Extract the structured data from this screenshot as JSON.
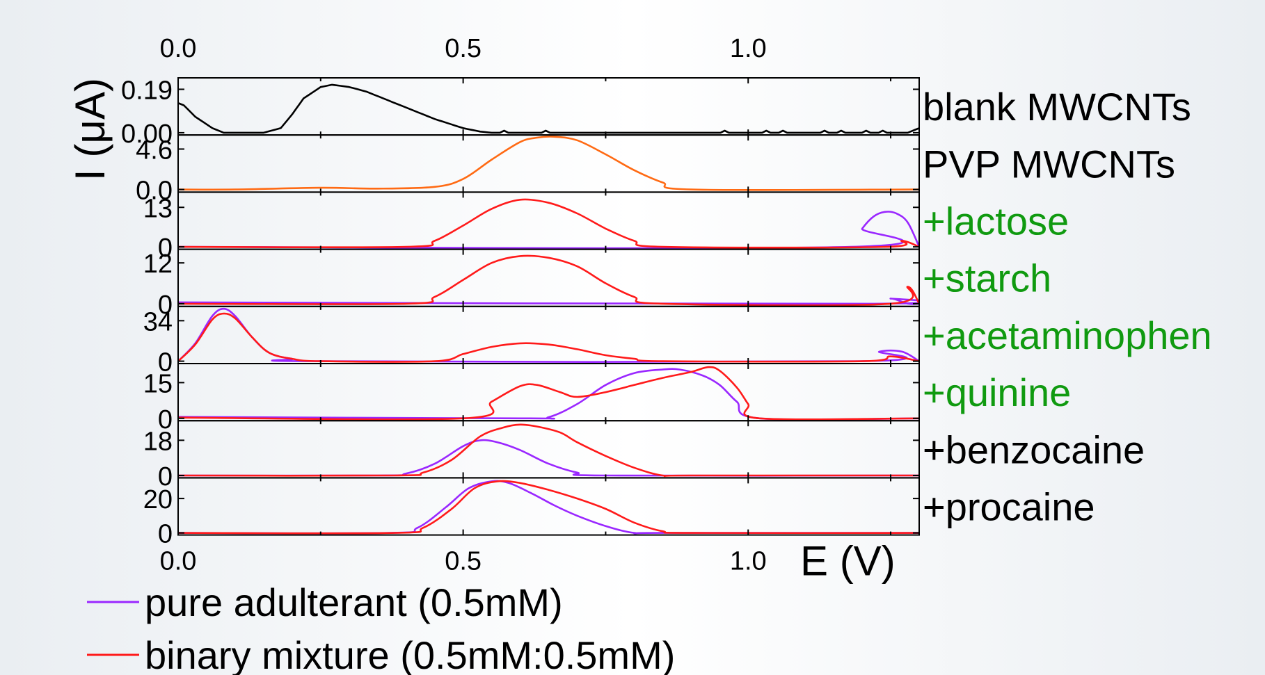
{
  "chart_data": {
    "type": "line",
    "xlabel": "E (V)",
    "ylabel": "I (μA)",
    "xlim": [
      0,
      1.3
    ],
    "x_ticks": [
      0,
      0.5,
      1.0
    ],
    "x_tick_labels_top": [
      "0.0",
      "0.5",
      "1.0"
    ],
    "x_tick_labels_bottom": [
      "0.0",
      "0.5",
      "1.0"
    ],
    "colors": {
      "black": "#000000",
      "orange": "#ff6a13",
      "purple": "#9a27ff",
      "red": "#ff1a1a",
      "green": "#109a10"
    },
    "legend": [
      {
        "label": "pure adulterant (0.5mM)",
        "color": "#9a27ff"
      },
      {
        "label": "binary mixture (0.5mM:0.5mM)",
        "color": "#ff1a1a"
      }
    ],
    "panels": [
      {
        "label": "blank MWCNTs",
        "label_color": "#000000",
        "ylim": [
          -0.01,
          0.24
        ],
        "yticks": [
          0.0,
          0.19
        ],
        "ytick_labels": [
          "0.00",
          "0.19"
        ],
        "series": [
          {
            "color": "#000000",
            "jitter": true,
            "x": [
              0,
              0.01,
              0.03,
              0.06,
              0.08,
              0.1,
              0.15,
              0.18,
              0.2,
              0.22,
              0.25,
              0.27,
              0.3,
              0.33,
              0.36,
              0.4,
              0.45,
              0.5,
              0.53,
              0.55,
              1.28,
              1.3
            ],
            "y": [
              0.13,
              0.12,
              0.07,
              0.02,
              0.0,
              0.0,
              0.0,
              0.02,
              0.08,
              0.15,
              0.2,
              0.21,
              0.2,
              0.18,
              0.15,
              0.11,
              0.06,
              0.02,
              0.005,
              0.0,
              0.0,
              0.02
            ]
          }
        ]
      },
      {
        "label": "PVP MWCNTs",
        "label_color": "#000000",
        "ylim": [
          -0.3,
          6.2
        ],
        "yticks": [
          0.0,
          4.6
        ],
        "ytick_labels": [
          "0.0",
          "4.6"
        ],
        "series": [
          {
            "color": "#ff6a13",
            "x": [
              0,
              0.1,
              0.25,
              0.35,
              0.45,
              0.5,
              0.55,
              0.6,
              0.63,
              0.66,
              0.7,
              0.75,
              0.8,
              0.85,
              0.9,
              1.3
            ],
            "y": [
              0,
              0,
              0.2,
              0.1,
              0.3,
              1.2,
              3.4,
              5.4,
              5.9,
              6.0,
              5.6,
              4.0,
              2.2,
              0.8,
              0,
              0
            ]
          }
        ]
      },
      {
        "label": "+lactose",
        "label_color": "#109a10",
        "ylim": [
          -0.8,
          18
        ],
        "yticks": [
          0,
          13
        ],
        "ytick_labels": [
          "0",
          "13"
        ],
        "series": [
          {
            "color": "#9a27ff",
            "x": [
              0,
              1.18,
              1.2,
              1.22,
              1.24,
              1.26,
              1.28,
              1.3
            ],
            "y": [
              0,
              0,
              6,
              10,
              11.5,
              11,
              8,
              0
            ]
          },
          {
            "color": "#ff1a1a",
            "x": [
              0,
              0.4,
              0.45,
              0.5,
              0.55,
              0.6,
              0.65,
              0.7,
              0.75,
              0.8,
              0.85,
              1.24,
              1.27,
              1.3
            ],
            "y": [
              0,
              0,
              2,
              7,
              12.5,
              15.5,
              14.5,
              11,
              6,
              2,
              0,
              0,
              2,
              0
            ]
          }
        ]
      },
      {
        "label": "+starch",
        "label_color": "#109a10",
        "ylim": [
          -0.8,
          16
        ],
        "yticks": [
          0,
          12
        ],
        "ytick_labels": [
          "0",
          "12"
        ],
        "series": [
          {
            "color": "#9a27ff",
            "x": [
              0,
              1.22,
              1.25,
              1.28,
              1.3
            ],
            "y": [
              0.4,
              0,
              1.5,
              0,
              0
            ]
          },
          {
            "color": "#ff1a1a",
            "x": [
              0,
              0.4,
              0.45,
              0.5,
              0.55,
              0.6,
              0.65,
              0.7,
              0.75,
              0.8,
              0.85,
              1.25,
              1.28,
              1.3
            ],
            "y": [
              0,
              0,
              2,
              7,
              12,
              14,
              13.5,
              11,
              6,
              2,
              0,
              0,
              5,
              0
            ]
          }
        ]
      },
      {
        "label": "+acetaminophen",
        "label_color": "#109a10",
        "ylim": [
          -2,
          46
        ],
        "yticks": [
          0,
          34
        ],
        "ytick_labels": [
          "0",
          "34"
        ],
        "series": [
          {
            "color": "#9a27ff",
            "x": [
              0,
              0.03,
              0.06,
              0.08,
              0.1,
              0.13,
              0.16,
              0.2,
              0.25,
              1.2,
              1.23,
              1.27,
              1.3
            ],
            "y": [
              0,
              15,
              38,
              44,
              38,
              20,
              7,
              2,
              0,
              0,
              8,
              8,
              0
            ]
          },
          {
            "color": "#ff1a1a",
            "x": [
              0,
              0.03,
              0.06,
              0.08,
              0.1,
              0.13,
              0.16,
              0.2,
              0.25,
              0.45,
              0.5,
              0.55,
              0.6,
              0.65,
              0.7,
              0.75,
              0.8,
              0.85,
              1.2,
              1.25,
              1.3
            ],
            "y": [
              0,
              14,
              35,
              40,
              36,
              20,
              7,
              2,
              0,
              0,
              6,
              12,
              15,
              14,
              10,
              5,
              2,
              0,
              0,
              4,
              0
            ]
          }
        ]
      },
      {
        "label": "+quinine",
        "label_color": "#109a10",
        "ylim": [
          -1,
          23
        ],
        "yticks": [
          0,
          15
        ],
        "ytick_labels": [
          "0",
          "15"
        ],
        "series": [
          {
            "color": "#9a27ff",
            "x": [
              0,
              0.6,
              0.65,
              0.7,
              0.75,
              0.8,
              0.85,
              0.88,
              0.92,
              0.95,
              0.98,
              1.02,
              1.3
            ],
            "y": [
              0.6,
              0,
              0.5,
              6,
              14,
              19,
              20.5,
              20.5,
              18,
              14,
              7,
              0,
              0
            ]
          },
          {
            "color": "#ff1a1a",
            "x": [
              0,
              0.5,
              0.55,
              0.6,
              0.63,
              0.67,
              0.7,
              0.75,
              0.8,
              0.85,
              0.9,
              0.93,
              0.95,
              0.98,
              1.0,
              1.02,
              1.3
            ],
            "y": [
              0.3,
              0,
              7,
              13.5,
              14,
              11,
              9,
              11,
              14,
              17,
              19.5,
              21.5,
              20,
              13,
              6,
              0,
              0
            ]
          }
        ]
      },
      {
        "label": "+benzocaine",
        "label_color": "#000000",
        "ylim": [
          -1.2,
          28
        ],
        "yticks": [
          0,
          18
        ],
        "ytick_labels": [
          "0",
          "18"
        ],
        "series": [
          {
            "color": "#9a27ff",
            "x": [
              0,
              0.35,
              0.4,
              0.45,
              0.5,
              0.53,
              0.56,
              0.6,
              0.65,
              0.7,
              0.75,
              1.3
            ],
            "y": [
              0,
              0,
              1,
              6,
              15,
              18,
              17,
              13,
              6,
              1.5,
              0,
              0
            ]
          },
          {
            "color": "#ff1a1a",
            "x": [
              0,
              0.38,
              0.43,
              0.48,
              0.53,
              0.57,
              0.6,
              0.63,
              0.67,
              0.7,
              0.75,
              0.8,
              0.85,
              0.9,
              1.3
            ],
            "y": [
              0,
              0,
              1.5,
              8,
              20,
              24.5,
              26,
              25,
              22,
              17,
              10,
              4,
              0,
              0,
              0
            ]
          }
        ]
      },
      {
        "label": "+procaine",
        "label_color": "#000000",
        "ylim": [
          -1.2,
          32
        ],
        "yticks": [
          0,
          20
        ],
        "ytick_labels": [
          "0",
          "20"
        ],
        "series": [
          {
            "color": "#9a27ff",
            "x": [
              0,
              0.37,
              0.42,
              0.47,
              0.51,
              0.55,
              0.58,
              0.62,
              0.66,
              0.7,
              0.75,
              0.8,
              0.85,
              1.3
            ],
            "y": [
              0,
              0,
              3,
              15,
              26,
              30,
              29,
              23,
              16,
              10,
              4,
              0,
              0,
              0
            ]
          },
          {
            "color": "#ff1a1a",
            "x": [
              0,
              0.38,
              0.43,
              0.48,
              0.52,
              0.56,
              0.6,
              0.65,
              0.7,
              0.75,
              0.8,
              0.85,
              0.9,
              1.3
            ],
            "y": [
              0,
              0,
              3,
              14,
              26,
              30,
              29,
              25,
              20,
              14,
              6,
              1,
              0,
              0
            ]
          }
        ]
      }
    ]
  }
}
